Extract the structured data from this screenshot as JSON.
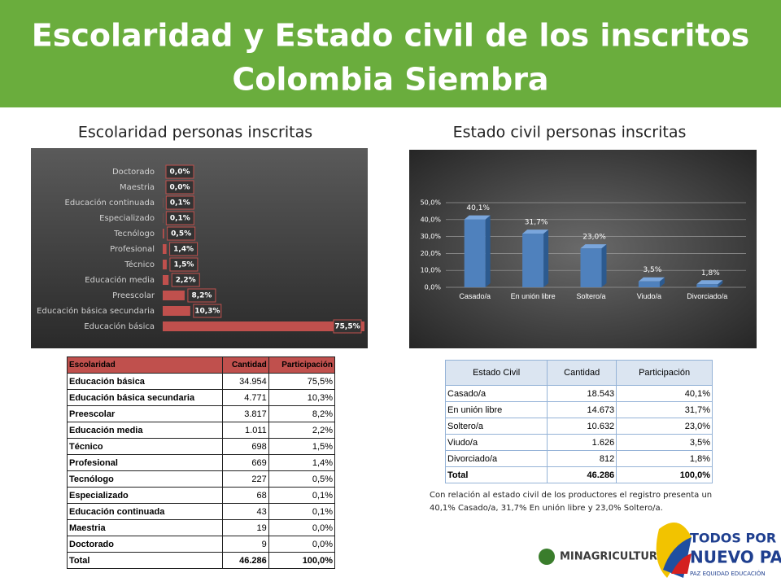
{
  "header": {
    "title_line1": "Escolaridad y Estado civil de los inscritos",
    "title_line2": "Colombia Siembra"
  },
  "chart_data": [
    {
      "type": "hbar",
      "title": "Escolaridad personas inscritas",
      "categories": [
        "Educación básica",
        "Educación básica secundaria",
        "Preescolar",
        "Educación media",
        "Técnico",
        "Profesional",
        "Tecnólogo",
        "Especializado",
        "Educación continuada",
        "Maestria",
        "Doctorado"
      ],
      "values": [
        75.5,
        10.3,
        8.2,
        2.2,
        1.5,
        1.4,
        0.5,
        0.1,
        0.1,
        0.0,
        0.0
      ],
      "value_labels": [
        "75,5%",
        "10,3%",
        "8,2%",
        "2,2%",
        "1,5%",
        "1,4%",
        "0,5%",
        "0,1%",
        "0,1%",
        "0,0%",
        "0,0%"
      ],
      "color": "#c0504d"
    },
    {
      "type": "bar",
      "title": "Estado civil personas inscritas",
      "categories": [
        "Casado/a",
        "En unión libre",
        "Soltero/a",
        "Viudo/a",
        "Divorciado/a"
      ],
      "values": [
        40.1,
        31.7,
        23.0,
        3.5,
        1.8
      ],
      "value_labels": [
        "40,1%",
        "31,7%",
        "23,0%",
        "3,5%",
        "1,8%"
      ],
      "color": "#4f81bd",
      "ylim": [
        0,
        50
      ],
      "yticks": [
        {
          "value": 0,
          "label": "0,0%"
        },
        {
          "value": 10,
          "label": "10,0%"
        },
        {
          "value": 20,
          "label": "20,0%"
        },
        {
          "value": 30,
          "label": "30,0%"
        },
        {
          "value": 40,
          "label": "40,0%"
        },
        {
          "value": 50,
          "label": "50,0%"
        }
      ],
      "grid": true
    }
  ],
  "tables": [
    {
      "header": [
        "Escolaridad",
        "Cantidad",
        "Participación"
      ],
      "rows": [
        [
          "Educación básica",
          "34.954",
          "75,5%"
        ],
        [
          "Educación básica secundaria",
          "4.771",
          "10,3%"
        ],
        [
          "Preescolar",
          "3.817",
          "8,2%"
        ],
        [
          "Educación media",
          "1.011",
          "2,2%"
        ],
        [
          "Técnico",
          "698",
          "1,5%"
        ],
        [
          "Profesional",
          "669",
          "1,4%"
        ],
        [
          "Tecnólogo",
          "227",
          "0,5%"
        ],
        [
          "Especializado",
          "68",
          "0,1%"
        ],
        [
          "Educación continuada",
          "43",
          "0,1%"
        ],
        [
          "Maestria",
          "19",
          "0,0%"
        ],
        [
          "Doctorado",
          "9",
          "0,0%"
        ],
        [
          "Total",
          "46.286",
          "100,0%"
        ]
      ]
    },
    {
      "header": [
        "Estado Civil",
        "Cantidad",
        "Participación"
      ],
      "rows": [
        [
          "Casado/a",
          "18.543",
          "40,1%"
        ],
        [
          "En unión libre",
          "14.673",
          "31,7%"
        ],
        [
          "Soltero/a",
          "10.632",
          "23,0%"
        ],
        [
          "Viudo/a",
          "1.626",
          "3,5%"
        ],
        [
          "Divorciado/a",
          "812",
          "1,8%"
        ],
        [
          "Total",
          "46.286",
          "100,0%"
        ]
      ]
    }
  ],
  "note": "Con relación al estado civil de los productores el registro presenta un 40,1% Casado/a, 31,7% En unión libre y 23,0% Soltero/a.",
  "logos": {
    "ministry": "MINAGRICULTURA",
    "slogan_line1": "TODOS POR UN",
    "slogan_line2": "NUEVO PAÍS",
    "slogan_line3": "PAZ  EQUIDAD  EDUCACIÓN"
  }
}
